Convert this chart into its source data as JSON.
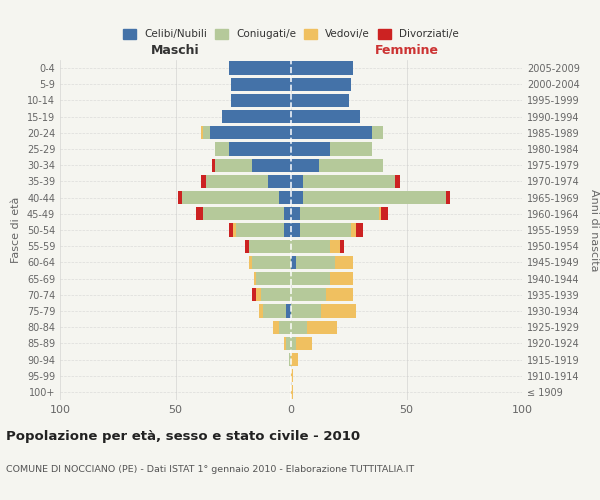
{
  "age_groups": [
    "100+",
    "95-99",
    "90-94",
    "85-89",
    "80-84",
    "75-79",
    "70-74",
    "65-69",
    "60-64",
    "55-59",
    "50-54",
    "45-49",
    "40-44",
    "35-39",
    "30-34",
    "25-29",
    "20-24",
    "15-19",
    "10-14",
    "5-9",
    "0-4"
  ],
  "birth_years": [
    "≤ 1909",
    "1910-1914",
    "1915-1919",
    "1920-1924",
    "1925-1929",
    "1930-1934",
    "1935-1939",
    "1940-1944",
    "1945-1949",
    "1950-1954",
    "1955-1959",
    "1960-1964",
    "1965-1969",
    "1970-1974",
    "1975-1979",
    "1980-1984",
    "1985-1989",
    "1990-1994",
    "1995-1999",
    "2000-2004",
    "2005-2009"
  ],
  "male": {
    "celibi": [
      0,
      0,
      0,
      0,
      0,
      2,
      0,
      0,
      0,
      0,
      3,
      3,
      5,
      10,
      17,
      27,
      35,
      30,
      26,
      26,
      27
    ],
    "coniugati": [
      0,
      0,
      1,
      2,
      5,
      10,
      13,
      15,
      17,
      18,
      21,
      35,
      42,
      27,
      16,
      6,
      3,
      0,
      0,
      0,
      0
    ],
    "vedovi": [
      0,
      0,
      0,
      1,
      3,
      2,
      2,
      1,
      1,
      0,
      1,
      0,
      0,
      0,
      0,
      0,
      1,
      0,
      0,
      0,
      0
    ],
    "divorziati": [
      0,
      0,
      0,
      0,
      0,
      0,
      2,
      0,
      0,
      2,
      2,
      3,
      2,
      2,
      1,
      0,
      0,
      0,
      0,
      0,
      0
    ]
  },
  "female": {
    "nubili": [
      0,
      0,
      0,
      0,
      0,
      0,
      0,
      0,
      2,
      0,
      4,
      4,
      5,
      5,
      12,
      17,
      35,
      30,
      25,
      26,
      27
    ],
    "coniugate": [
      0,
      0,
      0,
      2,
      7,
      13,
      15,
      17,
      17,
      17,
      22,
      34,
      62,
      40,
      28,
      18,
      5,
      0,
      0,
      0,
      0
    ],
    "vedove": [
      1,
      1,
      3,
      7,
      13,
      15,
      12,
      10,
      8,
      4,
      2,
      1,
      0,
      0,
      0,
      0,
      0,
      0,
      0,
      0,
      0
    ],
    "divorziate": [
      0,
      0,
      0,
      0,
      0,
      0,
      0,
      0,
      0,
      2,
      3,
      3,
      2,
      2,
      0,
      0,
      0,
      0,
      0,
      0,
      0
    ]
  },
  "colors": {
    "celibi": "#4472a8",
    "coniugati": "#b5c99a",
    "vedovi": "#f0c060",
    "divorziati": "#cc2222"
  },
  "xlim": 100,
  "title": "Popolazione per età, sesso e stato civile - 2010",
  "subtitle": "COMUNE DI NOCCIANO (PE) - Dati ISTAT 1° gennaio 2010 - Elaborazione TUTTITALIA.IT",
  "ylabel_left": "Fasce di età",
  "ylabel_right": "Anni di nascita",
  "xlabel_left": "Maschi",
  "xlabel_right": "Femmine",
  "background_color": "#f5f5f0",
  "grid_color": "#cccccc"
}
